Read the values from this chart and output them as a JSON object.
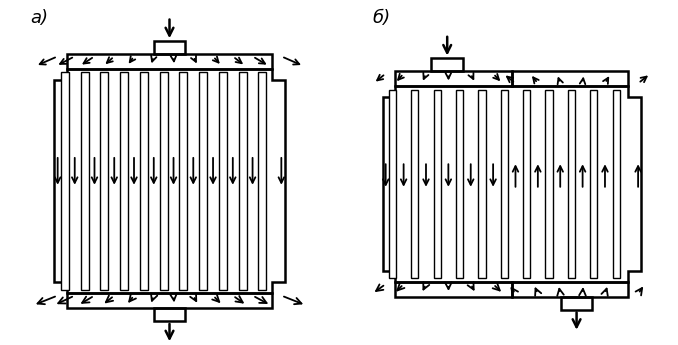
{
  "fig_width": 6.78,
  "fig_height": 3.45,
  "bg_color": "#ffffff",
  "label_a": "a)",
  "label_b": "б)",
  "lw_main": 1.8,
  "lw_plate": 1.0,
  "arrow_ms": 10,
  "arrow_lw": 1.3,
  "arrow_ms_main": 14,
  "arrow_lw_main": 1.8
}
